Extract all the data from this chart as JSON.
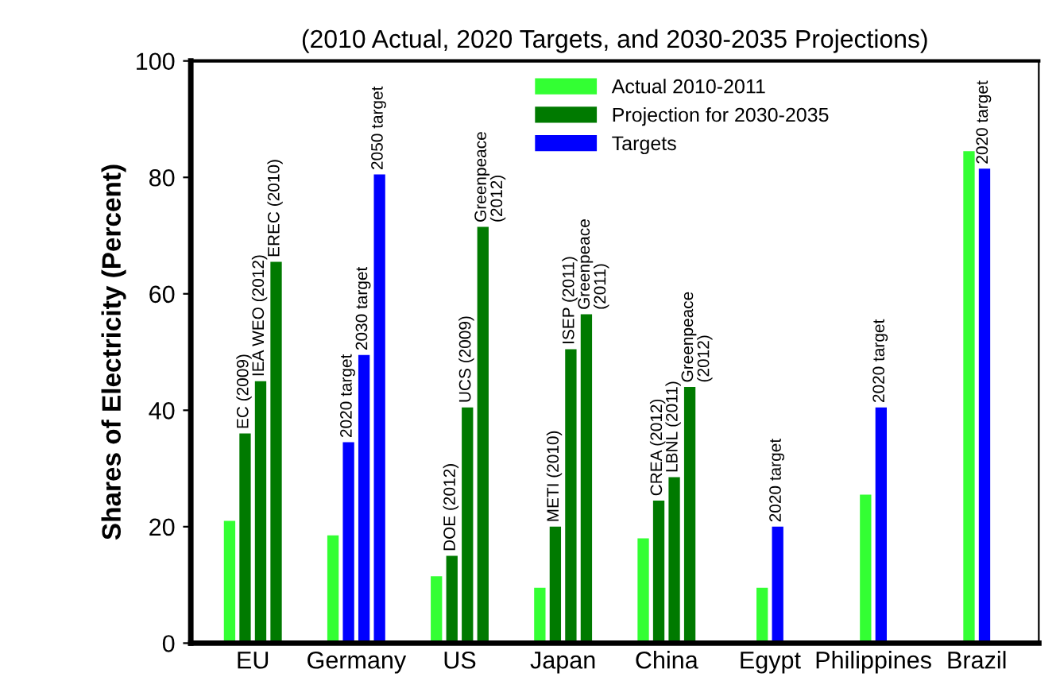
{
  "chart_data": {
    "type": "bar",
    "title": "(2010 Actual, 2020 Targets, and 2030-2035 Projections)",
    "ylabel": "Shares of Electricity (Percent)",
    "categories": [
      "EU",
      "Germany",
      "US",
      "Japan",
      "China",
      "Egypt",
      "Philippines",
      "Brazil"
    ],
    "series": [
      {
        "name": "Actual 2010-2011",
        "color": "#33ff33",
        "values": [
          21,
          18.5,
          11.5,
          9.5,
          18,
          9.5,
          25.5,
          84.5
        ]
      },
      {
        "name": "Projection for 2030-2035",
        "color": "#007a00",
        "values": [
          36,
          null,
          15,
          20,
          24.5,
          null,
          null,
          null
        ]
      },
      {
        "color": "#007a00",
        "values": [
          45,
          null,
          40.5,
          50.5,
          28.5,
          null,
          null,
          null
        ]
      },
      {
        "color": "#007a00",
        "values": [
          65.5,
          null,
          71.5,
          56.5,
          44,
          null,
          null,
          null
        ]
      },
      {
        "name": "Targets",
        "color": "#0000ff",
        "values": [
          null,
          34.5,
          null,
          null,
          null,
          20,
          40.5,
          81.5
        ]
      },
      {
        "color": "#0000ff",
        "values": [
          null,
          49.5,
          null,
          null,
          null,
          null,
          null,
          null
        ]
      },
      {
        "color": "#0000ff",
        "values": [
          null,
          80.5,
          null,
          null,
          null,
          null,
          null,
          null
        ]
      }
    ],
    "annotations": [
      {
        "text": "EC (2009)",
        "x": "EU",
        "y": 36
      },
      {
        "text": "IEA WEO (2012)",
        "x": "EU",
        "y": 45
      },
      "EREC (2010)",
      {
        "text": "2020 target",
        "x": "Germany",
        "y": 34.5
      },
      {
        "text": "2030 target",
        "x": "Germany",
        "y": 49.5
      },
      "2050 target",
      {
        "text": "DOE (2012)",
        "x": "US",
        "y": 15
      },
      {
        "text": "UCS (2009)",
        "x": "US",
        "y": 40.5
      },
      "Greenpeace\n(2012)",
      {
        "text": "METI (2010)",
        "x": "Japan",
        "y": 20
      },
      {
        "text": "ISEP (2011)",
        "x": "Japan",
        "y": 50.5
      },
      "Greenpeace\n(2011)",
      {
        "text": "CREA (2012)",
        "x": "China",
        "y": 24.5
      },
      {
        "text": "LBNL (2011)",
        "x": "China",
        "y": 28.5
      },
      "Greenpeace\n(2012)",
      {
        "text": "2020 target",
        "x": "Egypt",
        "y": 20
      },
      {
        "text": "2020 target",
        "x": "Philippines",
        "y": 40.5
      },
      {
        "text": "2020 target",
        "x": "Brazil",
        "y": 81.5
      }
    ],
    "ylim": [
      0,
      100
    ],
    "yticks": [
      0,
      20,
      40,
      60,
      80,
      100
    ],
    "grid": false,
    "legend": "top"
  }
}
